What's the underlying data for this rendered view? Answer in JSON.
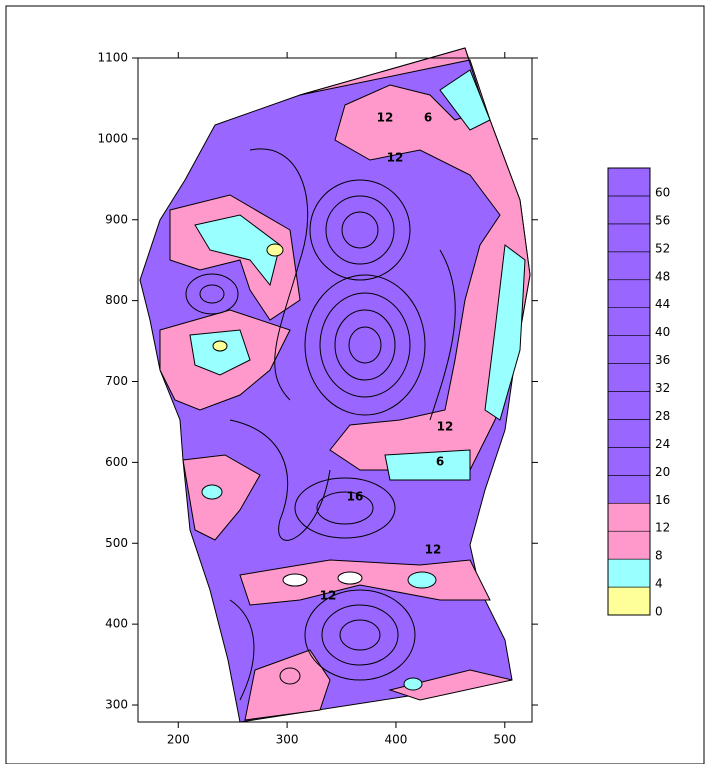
{
  "chart_data": {
    "type": "contour",
    "xlim": [
      163,
      525
    ],
    "ylim": [
      279,
      1100
    ],
    "xticks": [
      200,
      300,
      400,
      500
    ],
    "yticks": [
      300,
      400,
      500,
      600,
      700,
      800,
      900,
      1000,
      1100
    ],
    "colorbar": {
      "levels": [
        0,
        4,
        8,
        12,
        16,
        20,
        24,
        28,
        32,
        36,
        40,
        44,
        48,
        52,
        56,
        60
      ],
      "colors": [
        "#ffff99",
        "#99ffff",
        "#ff99cc",
        "#ff99cc",
        "#9966ff",
        "#9966ff",
        "#9966ff",
        "#9966ff",
        "#9966ff",
        "#9966ff",
        "#9966ff",
        "#9966ff",
        "#9966ff",
        "#9966ff",
        "#9966ff",
        "#9966ff"
      ]
    },
    "annotations": [
      "12",
      "6",
      "12",
      "12",
      "6",
      "16",
      "12",
      "12"
    ]
  }
}
